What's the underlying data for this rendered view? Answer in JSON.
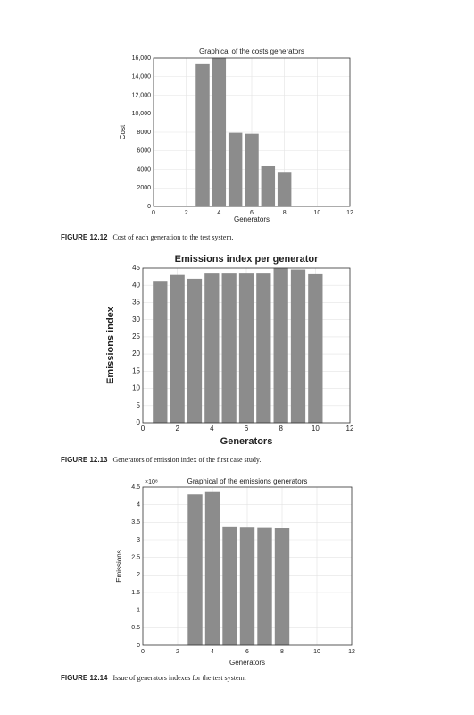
{
  "chart_data": [
    {
      "type": "bar",
      "title": "Graphical of the costs generators",
      "xlabel": "Generators",
      "ylabel": "Cost",
      "x": [
        1,
        2,
        3,
        4,
        5,
        6,
        7,
        8,
        9,
        10,
        11
      ],
      "values": [
        0,
        0,
        15300,
        16000,
        7900,
        7800,
        4300,
        3600,
        0,
        0,
        0
      ],
      "color": "#8c8c8c",
      "xlim": [
        0,
        12
      ],
      "xticks": [
        0,
        2,
        4,
        6,
        8,
        10,
        12
      ],
      "ylim": [
        0,
        16000
      ],
      "yticks": [
        0,
        2000,
        4000,
        6000,
        8000,
        {
          "value": 10000,
          "label": "10,000"
        },
        {
          "value": 12000,
          "label": "12,000"
        },
        {
          "value": 14000,
          "label": "14,000"
        },
        {
          "value": 16000,
          "label": "16,000"
        }
      ],
      "grid": true,
      "figure": "FIGURE 12.12",
      "caption": "Cost of each generation to the test system."
    },
    {
      "type": "bar",
      "title": "Emissions index per generator",
      "xlabel": "Generators",
      "ylabel": "Emissions index",
      "x": [
        1,
        2,
        3,
        4,
        5,
        6,
        7,
        8,
        9,
        10
      ],
      "values": [
        41.2,
        42.9,
        41.8,
        43.3,
        43.3,
        43.3,
        43.3,
        45,
        44.5,
        43.1
      ],
      "color": "#8c8c8c",
      "xlim": [
        0,
        12
      ],
      "xticks": [
        0,
        2,
        4,
        6,
        8,
        10,
        12
      ],
      "ylim": [
        0,
        45
      ],
      "yticks": [
        0,
        5,
        10,
        15,
        20,
        25,
        30,
        35,
        40,
        45
      ],
      "grid": true,
      "figure": "FIGURE 12.13",
      "caption": "Generators of emission index of the first case study."
    },
    {
      "type": "bar",
      "title": "Graphical of the emissions generators",
      "xlabel": "Generators",
      "ylabel": "Emissions",
      "y_exponent": "×10⁸",
      "x": [
        1,
        2,
        3,
        4,
        5,
        6,
        7,
        8,
        9,
        10,
        11
      ],
      "values": [
        0,
        0,
        4.28,
        4.37,
        3.35,
        3.34,
        3.33,
        3.32,
        0,
        0,
        0
      ],
      "color": "#8c8c8c",
      "xlim": [
        0,
        12
      ],
      "xticks": [
        0,
        2,
        4,
        6,
        8,
        10,
        12
      ],
      "ylim": [
        0,
        4.5
      ],
      "yticks": [
        0,
        0.5,
        1,
        1.5,
        2,
        2.5,
        3,
        3.5,
        4,
        4.5
      ],
      "grid": true,
      "figure": "FIGURE 12.14",
      "caption": "Issue of generators indexes for the test system."
    }
  ]
}
